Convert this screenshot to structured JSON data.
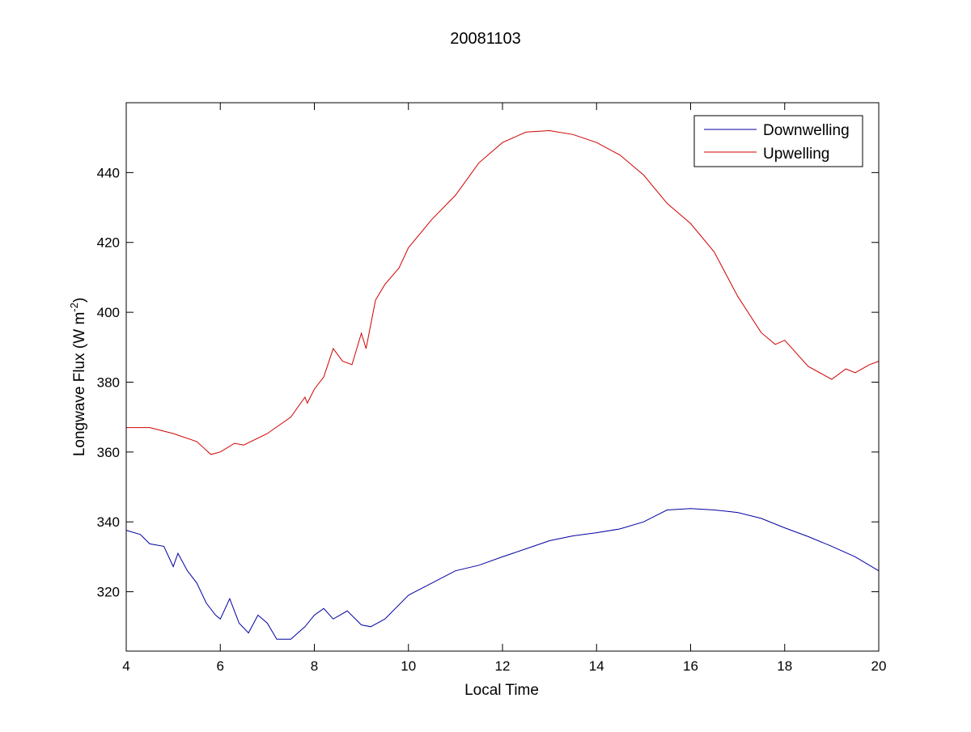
{
  "chart_data": {
    "type": "line",
    "title": "20081103",
    "xlabel": "Local Time",
    "ylabel": "Longwave Flux (W m",
    "ylabel_sup": "-2",
    "ylabel_end": ")",
    "xlim": [
      4,
      20
    ],
    "ylim": [
      303,
      460
    ],
    "xticks": [
      4,
      6,
      8,
      10,
      12,
      14,
      16,
      18,
      20
    ],
    "yticks": [
      320,
      340,
      360,
      380,
      400,
      420,
      440
    ],
    "grid": false,
    "legend_position": "top-right",
    "series": [
      {
        "name": "Downwelling",
        "color": "#0000a0",
        "x": [
          4,
          4.3,
          4.5,
          4.8,
          5,
          5.1,
          5.3,
          5.5,
          5.7,
          5.9,
          6,
          6.2,
          6.4,
          6.6,
          6.8,
          7,
          7.2,
          7.5,
          7.8,
          8,
          8.2,
          8.4,
          8.7,
          9,
          9.2,
          9.5,
          10,
          10.5,
          11,
          11.5,
          12,
          12.5,
          13,
          13.5,
          14,
          14.5,
          15,
          15.5,
          16,
          16.5,
          17,
          17.5,
          18,
          18.5,
          19,
          19.5,
          20
        ],
        "y": [
          337.6,
          336.4,
          333.7,
          333,
          327.2,
          331,
          326,
          322.5,
          316.8,
          313.3,
          312.2,
          318,
          311,
          308.2,
          313.3,
          311,
          306.4,
          306.4,
          310,
          313.3,
          315.2,
          312.2,
          314.5,
          310.5,
          310,
          312.2,
          319,
          322.5,
          326,
          327.6,
          330,
          332.3,
          334.6,
          336,
          336.9,
          338,
          340,
          343.4,
          343.8,
          343.4,
          342.7,
          341,
          338.3,
          335.8,
          333,
          330,
          326
        ]
      },
      {
        "name": "Upwelling",
        "color": "#d00000",
        "x": [
          4,
          4.5,
          5,
          5.5,
          5.8,
          6,
          6.3,
          6.5,
          7,
          7.5,
          7.8,
          7.85,
          8,
          8.2,
          8.4,
          8.6,
          8.8,
          9,
          9.1,
          9.3,
          9.5,
          9.8,
          10,
          10.5,
          11,
          11.5,
          12,
          12.5,
          13,
          13.5,
          14,
          14.5,
          15,
          15.5,
          16,
          16.5,
          17,
          17.5,
          17.8,
          18,
          18.5,
          19,
          19.3,
          19.5,
          19.8,
          20
        ],
        "y": [
          367,
          367,
          365.3,
          363,
          359.3,
          360,
          362.5,
          362,
          365.3,
          370,
          375.7,
          374,
          378,
          381.5,
          389.6,
          386,
          385,
          394,
          389.6,
          403.5,
          408,
          412.7,
          418.5,
          426.6,
          433.5,
          442.8,
          448.6,
          451.6,
          452,
          450.9,
          448.6,
          445,
          439.3,
          431.2,
          425.4,
          417.3,
          404.6,
          394.2,
          390.8,
          392,
          384.5,
          380.8,
          383.8,
          382.7,
          385,
          386
        ]
      }
    ]
  }
}
